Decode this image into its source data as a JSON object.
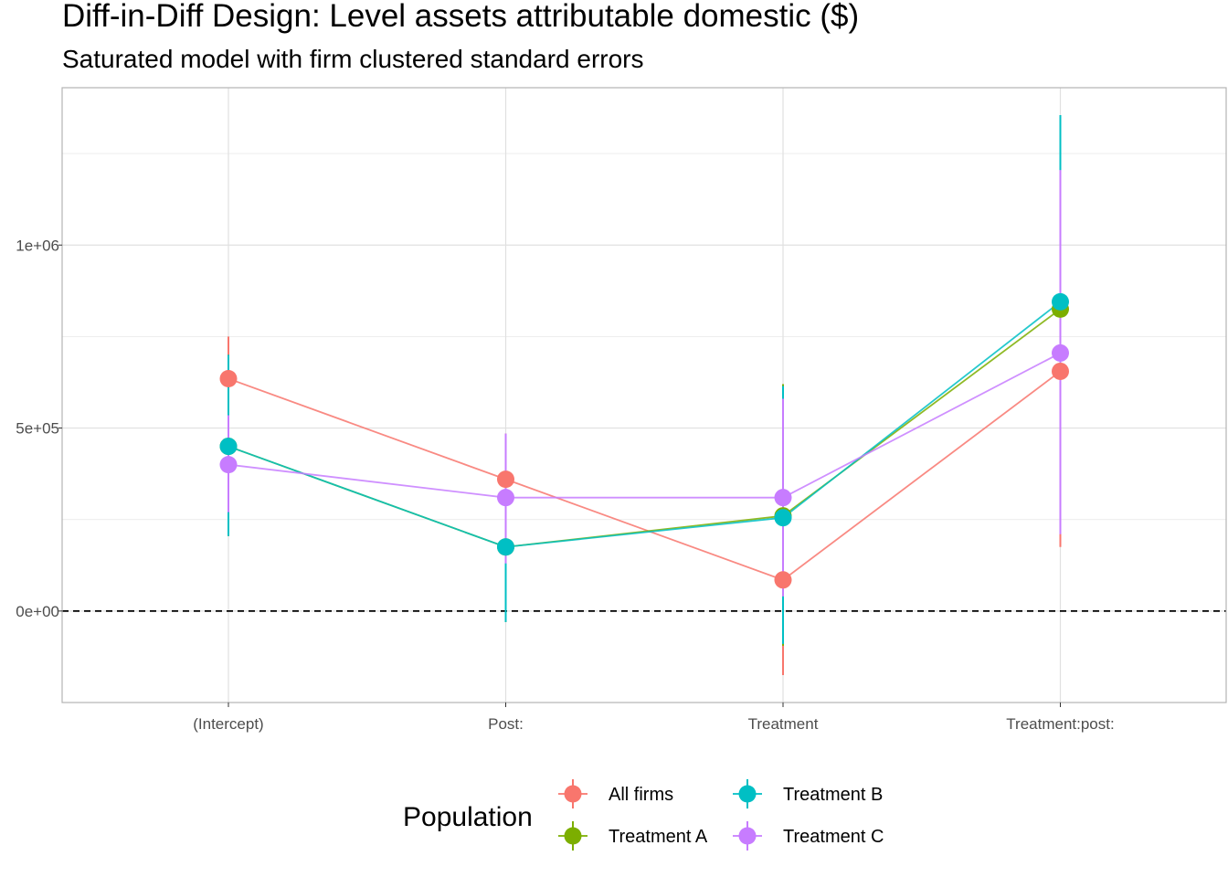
{
  "chart_data": {
    "type": "line",
    "title": "Diff-in-Diff Design: Level assets attributable domestic  ($)",
    "subtitle": "Saturated model with firm clustered standard errors",
    "xlabel": "",
    "ylabel": "",
    "categories": [
      "(Intercept)",
      "Post:",
      "Treatment",
      "Treatment:post:"
    ],
    "ylim": [
      -250000,
      1430000
    ],
    "y_ticks": [
      {
        "value": 0,
        "label": "0e+00"
      },
      {
        "value": 500000,
        "label": "5e+05"
      },
      {
        "value": 1000000,
        "label": "1e+06"
      }
    ],
    "y_minor_ticks": [
      250000,
      750000,
      1250000
    ],
    "reference_line": {
      "value": 0,
      "style": "dashed"
    },
    "grid": true,
    "legend": {
      "title": "Population",
      "placement": "bottom"
    },
    "series": [
      {
        "name": "All firms",
        "color": "#F8766D",
        "values": [
          635000,
          360000,
          85000,
          655000
        ],
        "lower": [
          525000,
          235000,
          -175000,
          175000
        ],
        "upper": [
          750000,
          485000,
          345000,
          1135000
        ]
      },
      {
        "name": "Treatment A",
        "color": "#7CAE00",
        "values": [
          450000,
          175000,
          260000,
          825000
        ],
        "lower": [
          205000,
          -30000,
          -95000,
          305000
        ],
        "upper": [
          700000,
          380000,
          620000,
          1345000
        ]
      },
      {
        "name": "Treatment B",
        "color": "#00BFC4",
        "values": [
          450000,
          175000,
          255000,
          845000
        ],
        "lower": [
          205000,
          -30000,
          -90000,
          330000
        ],
        "upper": [
          700000,
          380000,
          615000,
          1355000
        ]
      },
      {
        "name": "Treatment C",
        "color": "#C77CFF",
        "values": [
          400000,
          310000,
          310000,
          705000
        ],
        "lower": [
          270000,
          130000,
          40000,
          210000
        ],
        "upper": [
          535000,
          485000,
          580000,
          1205000
        ]
      }
    ]
  }
}
